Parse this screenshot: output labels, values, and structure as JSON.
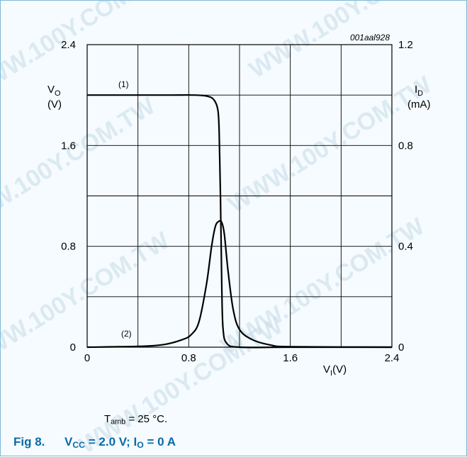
{
  "watermark": "WWW.100Y.COM.TW",
  "chart_data": {
    "type": "line",
    "chart_id": "001aal928",
    "x": {
      "label_main": "V",
      "label_sub": "I",
      "label_unit": "(V)",
      "range": [
        0,
        2.4
      ],
      "ticks": [
        0,
        0.8,
        1.6,
        2.4
      ],
      "tick_labels": [
        "0",
        "0.8",
        "1.6",
        "2.4"
      ]
    },
    "y_left": {
      "label_main": "V",
      "label_sub": "O",
      "label_unit": "(V)",
      "range": [
        0,
        2.4
      ],
      "ticks": [
        0,
        0.8,
        1.6,
        2.4
      ],
      "tick_labels": [
        "0",
        "0.8",
        "1.6",
        "2.4"
      ]
    },
    "y_right": {
      "label_main": "I",
      "label_sub": "D",
      "label_unit": "(mA)",
      "range": [
        0,
        1.2
      ],
      "ticks": [
        0,
        0.4,
        0.8,
        1.2
      ],
      "tick_labels": [
        "0",
        "0.4",
        "0.8",
        "1.2"
      ]
    },
    "grid": true,
    "series": [
      {
        "label": "(1)",
        "axis": "left",
        "x": [
          0,
          0.6,
          0.85,
          0.95,
          1.0,
          1.03,
          1.04,
          1.05,
          1.06,
          1.07,
          1.1,
          1.2,
          1.6,
          2.4
        ],
        "y": [
          2.0,
          2.0,
          2.0,
          1.99,
          1.96,
          1.88,
          1.7,
          1.2,
          0.5,
          0.15,
          0.03,
          0.0,
          0.0,
          0.0
        ]
      },
      {
        "label": "(2)",
        "axis": "right",
        "x": [
          0,
          0.4,
          0.6,
          0.75,
          0.82,
          0.88,
          0.94,
          0.98,
          1.01,
          1.04,
          1.06,
          1.08,
          1.11,
          1.15,
          1.2,
          1.3,
          1.45,
          1.6,
          2.4
        ],
        "y": [
          0,
          0.003,
          0.01,
          0.03,
          0.05,
          0.1,
          0.25,
          0.4,
          0.48,
          0.5,
          0.495,
          0.45,
          0.3,
          0.15,
          0.07,
          0.03,
          0.008,
          0.002,
          0
        ]
      }
    ]
  },
  "conditions": {
    "tamb_main": "T",
    "tamb_sub": "amb",
    "tamb_value": " = 25 °C."
  },
  "caption": {
    "fig_label": "Fig 8.",
    "vcc_main": "V",
    "vcc_sub": "CC",
    "vcc_value": " = 2.0 V; ",
    "io_main": "I",
    "io_sub": "O",
    "io_value": " = 0 A"
  }
}
